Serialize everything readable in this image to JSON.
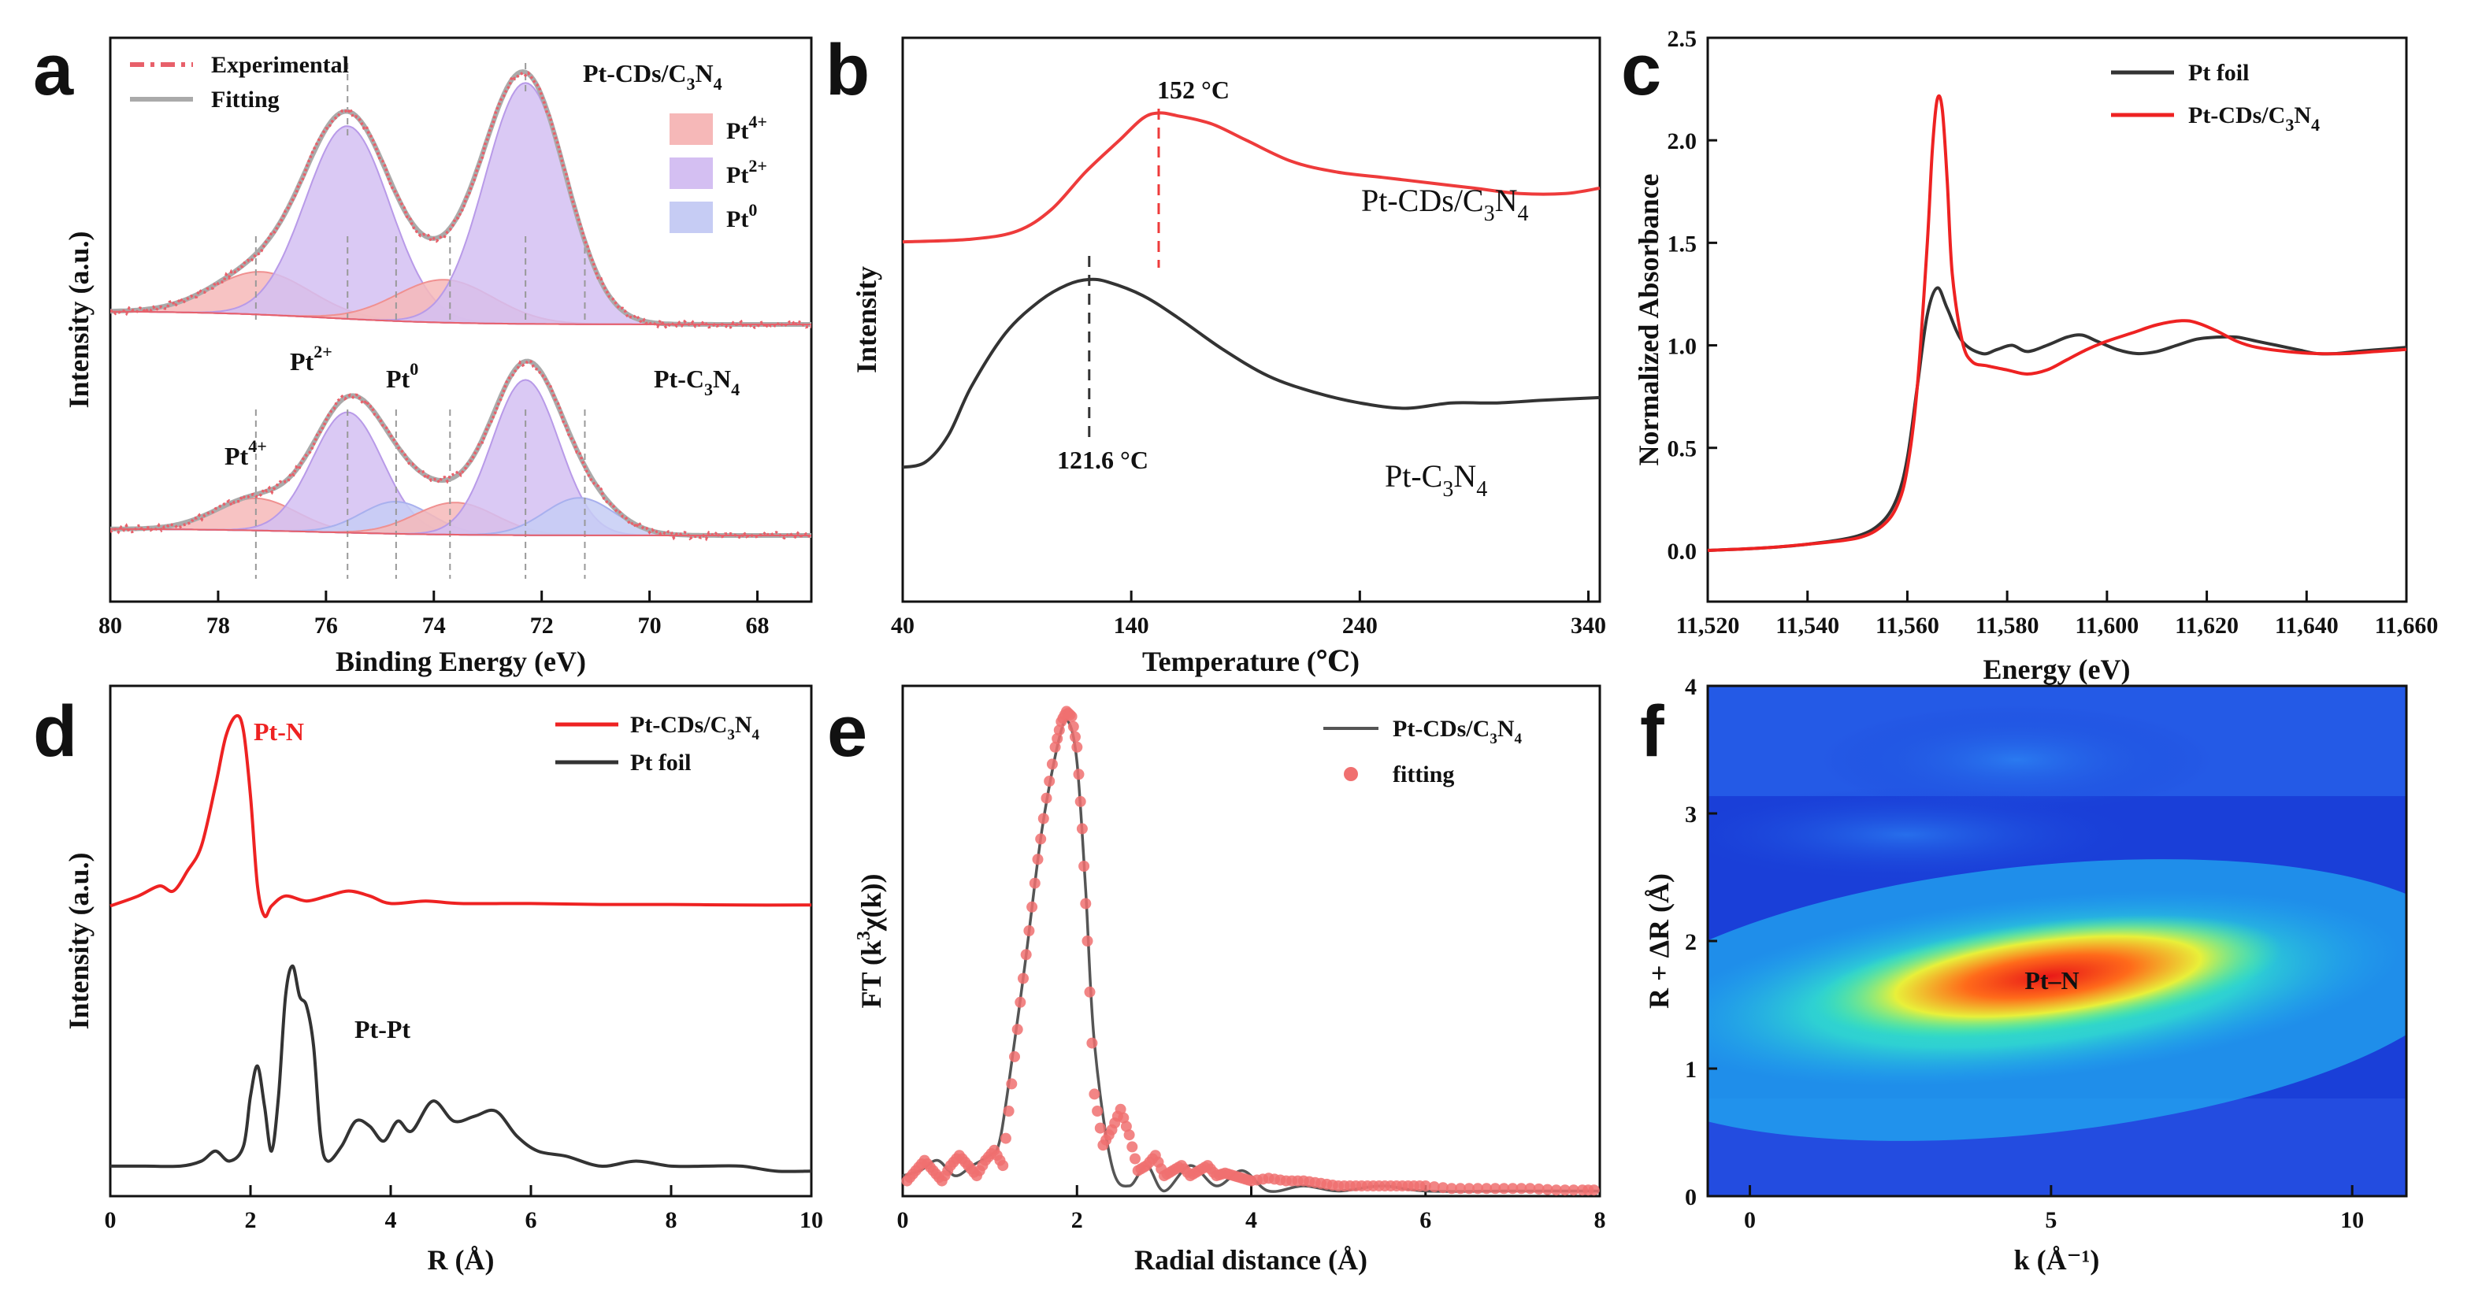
{
  "figure": {
    "panels": [
      "a",
      "b",
      "c",
      "d",
      "e",
      "f"
    ]
  },
  "chart_data": [
    {
      "id": "a",
      "type": "line",
      "title": "",
      "xlabel": "Binding Energy (eV)",
      "ylabel": "Intensity (a.u.)",
      "xlim": [
        80,
        67
      ],
      "xticks": [
        "80",
        "78",
        "76",
        "74",
        "72",
        "70",
        "68"
      ],
      "legend": [
        {
          "name": "Experimental",
          "color": "#e8606a"
        },
        {
          "name": "Fitting",
          "color": "#aaaaaa"
        }
      ],
      "components_legend": [
        {
          "name": "Pt",
          "sup": "4+",
          "color": "#f6b8b8"
        },
        {
          "name": "Pt",
          "sup": "2+",
          "color": "#d4bff2"
        },
        {
          "name": "Pt",
          "sup": "0",
          "color": "#c6ccf4"
        }
      ],
      "series": [
        {
          "name": "Pt-CDs/C3N4",
          "label_main": "Pt-CDs/C",
          "label_sub1": "3",
          "label_mid": "N",
          "label_sub2": "4",
          "baseline": 0.1,
          "components": [
            {
              "species": "Pt4+",
              "center": 77.2,
              "height": 0.16,
              "width": 0.9
            },
            {
              "species": "Pt2+",
              "center": 75.6,
              "height": 0.72,
              "width": 0.78
            },
            {
              "species": "Pt4+",
              "center": 73.8,
              "height": 0.16,
              "width": 0.9
            },
            {
              "species": "Pt2+",
              "center": 72.3,
              "height": 0.9,
              "width": 0.75
            }
          ]
        },
        {
          "name": "Pt-C3N4",
          "label_main": "Pt-C",
          "label_sub1": "3",
          "label_mid": "N",
          "label_sub2": "4",
          "baseline": 0.05,
          "components": [
            {
              "species": "Pt4+",
              "center": 77.3,
              "height": 0.12,
              "width": 0.75
            },
            {
              "species": "Pt2+",
              "center": 75.6,
              "height": 0.45,
              "width": 0.65
            },
            {
              "species": "Pt0",
              "center": 74.7,
              "height": 0.12,
              "width": 0.65
            },
            {
              "species": "Pt4+",
              "center": 73.6,
              "height": 0.12,
              "width": 0.75
            },
            {
              "species": "Pt2+",
              "center": 72.3,
              "height": 0.58,
              "width": 0.62
            },
            {
              "species": "Pt0",
              "center": 71.3,
              "height": 0.14,
              "width": 0.65
            }
          ]
        }
      ],
      "annotations": [
        {
          "text": "Pt",
          "sup": "2+",
          "near": 75.6
        },
        {
          "text": "Pt",
          "sup": "0",
          "near": 74.7
        },
        {
          "text": "Pt",
          "sup": "4+",
          "near": 77.3
        }
      ],
      "dashed_markers": [
        77.3,
        75.6,
        74.7,
        73.7,
        72.3,
        71.2
      ]
    },
    {
      "id": "b",
      "type": "line",
      "title": "",
      "xlabel": "Temperature (℃)",
      "ylabel": "Intensity",
      "xlim": [
        40,
        345
      ],
      "xticks": [
        40,
        140,
        240,
        340
      ],
      "series": [
        {
          "name": "Pt-CDs/C3N4",
          "label_main": "Pt-CDs/C",
          "label_sub1": "3",
          "label_mid": "N",
          "label_sub2": "4",
          "color": "#ee3b3b",
          "peak_text": "152 °C",
          "peak_x": 152,
          "x": [
            40,
            70,
            90,
            105,
            120,
            135,
            145,
            152,
            160,
            175,
            190,
            210,
            230,
            250,
            270,
            290,
            310,
            330,
            345
          ],
          "y": [
            0.67,
            0.675,
            0.69,
            0.73,
            0.8,
            0.86,
            0.9,
            0.91,
            0.905,
            0.89,
            0.86,
            0.82,
            0.8,
            0.79,
            0.78,
            0.77,
            0.76,
            0.76,
            0.77
          ]
        },
        {
          "name": "Pt-C3N4",
          "label_main": "Pt-C",
          "label_sub1": "3",
          "label_mid": "N",
          "label_sub2": "4",
          "color": "#333333",
          "peak_text": "121.6 °C",
          "peak_x": 121.6,
          "x": [
            40,
            50,
            60,
            70,
            85,
            100,
            112,
            121.6,
            130,
            145,
            160,
            180,
            200,
            220,
            240,
            260,
            280,
            300,
            320,
            345
          ],
          "y": [
            0.25,
            0.26,
            0.31,
            0.4,
            0.5,
            0.56,
            0.59,
            0.6,
            0.595,
            0.57,
            0.53,
            0.47,
            0.42,
            0.39,
            0.37,
            0.36,
            0.37,
            0.37,
            0.375,
            0.38
          ]
        }
      ],
      "ylim": [
        0,
        1.05
      ]
    },
    {
      "id": "c",
      "type": "line",
      "title": "",
      "xlabel": "Energy (eV)",
      "ylabel": "Normalized Absorbance",
      "xlim": [
        11520,
        11660
      ],
      "ylim": [
        -0.25,
        2.5
      ],
      "xticks": [
        "11,520",
        "11,540",
        "11,560",
        "11,580",
        "11,600",
        "11,620",
        "11,640",
        "11,660"
      ],
      "yticks": [
        "0.0",
        "0.5",
        "1.0",
        "1.5",
        "2.0",
        "2.5"
      ],
      "series": [
        {
          "name": "Pt foil",
          "color": "#333333",
          "x": [
            11520,
            11530,
            11540,
            11550,
            11555,
            11558,
            11560,
            11562,
            11564,
            11566,
            11568,
            11571,
            11575,
            11578,
            11581,
            11584,
            11588,
            11592,
            11595,
            11598,
            11602,
            11606,
            11610,
            11614,
            11618,
            11622,
            11626,
            11630,
            11634,
            11638,
            11642,
            11646,
            11650,
            11655,
            11660
          ],
          "y": [
            0.0,
            0.01,
            0.03,
            0.07,
            0.14,
            0.26,
            0.45,
            0.8,
            1.15,
            1.28,
            1.18,
            1.02,
            0.96,
            0.98,
            1.0,
            0.97,
            1.0,
            1.04,
            1.05,
            1.02,
            0.98,
            0.96,
            0.97,
            1.0,
            1.03,
            1.04,
            1.04,
            1.02,
            1.0,
            0.98,
            0.96,
            0.96,
            0.97,
            0.98,
            0.99
          ]
        },
        {
          "name": "Pt-CDs/C3N4",
          "label_main": "Pt-CDs/C",
          "label_sub1": "3",
          "label_mid": "N",
          "label_sub2": "4",
          "color": "#ee2222",
          "x": [
            11520,
            11530,
            11540,
            11550,
            11555,
            11558,
            11560,
            11562,
            11564,
            11565,
            11566,
            11567,
            11568,
            11569,
            11571,
            11573,
            11576,
            11580,
            11584,
            11588,
            11592,
            11596,
            11600,
            11605,
            11610,
            11615,
            11618,
            11622,
            11626,
            11630,
            11636,
            11642,
            11648,
            11654,
            11660
          ],
          "y": [
            0.0,
            0.01,
            0.03,
            0.06,
            0.12,
            0.22,
            0.4,
            0.8,
            1.5,
            1.95,
            2.2,
            2.15,
            1.8,
            1.35,
            1.02,
            0.92,
            0.9,
            0.88,
            0.86,
            0.88,
            0.93,
            0.98,
            1.02,
            1.06,
            1.1,
            1.12,
            1.11,
            1.07,
            1.02,
            0.99,
            0.97,
            0.96,
            0.96,
            0.97,
            0.98
          ]
        }
      ]
    },
    {
      "id": "d",
      "type": "line",
      "title": "",
      "xlabel": "R (Å)",
      "ylabel": "Intensity (a.u.)",
      "xlim": [
        0,
        10
      ],
      "xticks": [
        0,
        2,
        4,
        6,
        8,
        10
      ],
      "annotations": [
        {
          "text": "Pt-N",
          "color": "#ee2222"
        },
        {
          "text": "Pt-Pt",
          "color": "#333333"
        }
      ],
      "series": [
        {
          "name": "Pt-CDs/C3N4",
          "label_main": "Pt-CDs/C",
          "label_sub1": "3",
          "label_mid": "N",
          "label_sub2": "4",
          "color": "#ee2222",
          "x": [
            0,
            0.4,
            0.7,
            0.9,
            1.1,
            1.3,
            1.5,
            1.65,
            1.8,
            1.9,
            2.0,
            2.1,
            2.2,
            2.3,
            2.5,
            2.8,
            3.1,
            3.4,
            3.7,
            4.0,
            4.5,
            5.0,
            6.0,
            7.0,
            8.0,
            9.0,
            10.0
          ],
          "y": [
            0.58,
            0.6,
            0.62,
            0.61,
            0.65,
            0.7,
            0.82,
            0.92,
            0.96,
            0.93,
            0.8,
            0.62,
            0.56,
            0.58,
            0.6,
            0.59,
            0.6,
            0.61,
            0.6,
            0.585,
            0.59,
            0.585,
            0.585,
            0.583,
            0.583,
            0.582,
            0.582
          ]
        },
        {
          "name": "Pt foil",
          "color": "#333333",
          "x": [
            0,
            0.5,
            1.0,
            1.3,
            1.5,
            1.7,
            1.9,
            2.0,
            2.1,
            2.2,
            2.3,
            2.4,
            2.5,
            2.6,
            2.7,
            2.8,
            2.9,
            3.0,
            3.1,
            3.3,
            3.5,
            3.7,
            3.9,
            4.1,
            4.3,
            4.6,
            4.9,
            5.2,
            5.5,
            5.8,
            6.1,
            6.5,
            7.0,
            7.5,
            8.0,
            8.5,
            9.0,
            9.5,
            10.0
          ],
          "y": [
            0.06,
            0.06,
            0.06,
            0.07,
            0.09,
            0.07,
            0.1,
            0.2,
            0.26,
            0.18,
            0.09,
            0.2,
            0.4,
            0.46,
            0.4,
            0.38,
            0.3,
            0.12,
            0.07,
            0.1,
            0.15,
            0.14,
            0.11,
            0.15,
            0.13,
            0.19,
            0.15,
            0.16,
            0.17,
            0.12,
            0.09,
            0.08,
            0.06,
            0.07,
            0.06,
            0.06,
            0.06,
            0.05,
            0.05
          ]
        }
      ]
    },
    {
      "id": "e",
      "type": "line",
      "title": "",
      "xlabel": "Radial distance (Å)",
      "ylabel_main": "FT (k",
      "ylabel_sup": "3",
      "ylabel_end": "χ(k))",
      "xlim": [
        0,
        8
      ],
      "ylim": [
        0,
        1
      ],
      "xticks": [
        0,
        2,
        4,
        6,
        8
      ],
      "series": [
        {
          "name": "Pt-CDs/C3N4",
          "label_main": "Pt-CDs/C",
          "label_sub1": "3",
          "label_mid": "N",
          "label_sub2": "4",
          "color": "#555555",
          "x": [
            0,
            0.2,
            0.4,
            0.6,
            0.8,
            1.0,
            1.1,
            1.2,
            1.4,
            1.6,
            1.8,
            1.9,
            2.0,
            2.1,
            2.2,
            2.4,
            2.6,
            2.8,
            3.0,
            3.3,
            3.6,
            3.9,
            4.2,
            4.6,
            5.0,
            5.5,
            6.0,
            7.0,
            8.0
          ],
          "y": [
            0.04,
            0.05,
            0.07,
            0.04,
            0.06,
            0.08,
            0.1,
            0.2,
            0.45,
            0.72,
            0.9,
            0.93,
            0.85,
            0.6,
            0.3,
            0.06,
            0.02,
            0.06,
            0.01,
            0.06,
            0.02,
            0.05,
            0.01,
            0.02,
            0.01,
            0.02,
            0.01,
            0.01,
            0.01
          ]
        },
        {
          "name": "fitting",
          "color": "#f07070",
          "x": [
            0.05,
            0.15,
            0.25,
            0.35,
            0.45,
            0.55,
            0.65,
            0.75,
            0.85,
            0.95,
            1.05,
            1.15,
            1.25,
            1.35,
            1.45,
            1.55,
            1.65,
            1.75,
            1.82,
            1.88,
            1.94,
            2.0,
            2.06,
            2.12,
            2.2,
            2.3,
            2.4,
            2.5,
            2.6,
            2.7,
            2.8,
            2.9,
            3.0,
            3.1,
            3.2,
            3.3,
            3.4,
            3.5,
            3.6,
            3.7,
            3.8,
            3.9,
            4.0,
            4.2,
            4.4,
            4.6,
            4.8,
            5.0,
            5.2,
            5.4,
            5.6,
            5.8,
            6.0,
            6.3,
            6.6,
            6.9,
            7.2,
            7.5,
            7.8,
            8.0
          ],
          "y": [
            0.03,
            0.05,
            0.07,
            0.05,
            0.03,
            0.06,
            0.08,
            0.06,
            0.04,
            0.07,
            0.09,
            0.06,
            0.22,
            0.38,
            0.52,
            0.66,
            0.78,
            0.88,
            0.93,
            0.95,
            0.94,
            0.88,
            0.72,
            0.5,
            0.2,
            0.1,
            0.13,
            0.17,
            0.12,
            0.05,
            0.06,
            0.08,
            0.04,
            0.05,
            0.06,
            0.04,
            0.05,
            0.06,
            0.04,
            0.045,
            0.04,
            0.035,
            0.03,
            0.035,
            0.03,
            0.03,
            0.025,
            0.02,
            0.02,
            0.02,
            0.02,
            0.02,
            0.02,
            0.015,
            0.015,
            0.015,
            0.015,
            0.012,
            0.012,
            0.012
          ]
        }
      ]
    },
    {
      "id": "f",
      "type": "heatmap",
      "title": "",
      "xlabel": "k (Å⁻¹)",
      "ylabel": "R + ΔR (Å)",
      "xlim": [
        -0.7,
        10.9
      ],
      "ylim": [
        0,
        4
      ],
      "xticks": [
        0,
        5,
        10
      ],
      "yticks": [
        0,
        1,
        2,
        3,
        4
      ],
      "annotation": "Pt–N",
      "peak": {
        "k": 5.5,
        "R": 1.75
      },
      "colors": {
        "background": "#1a3fd8",
        "outer": "#22a9f0",
        "mid": "#3ff0a0",
        "inner": "#e8f03a",
        "core": "#ff6a1a",
        "peak": "#e81818",
        "top": "#1f56e8"
      }
    }
  ]
}
